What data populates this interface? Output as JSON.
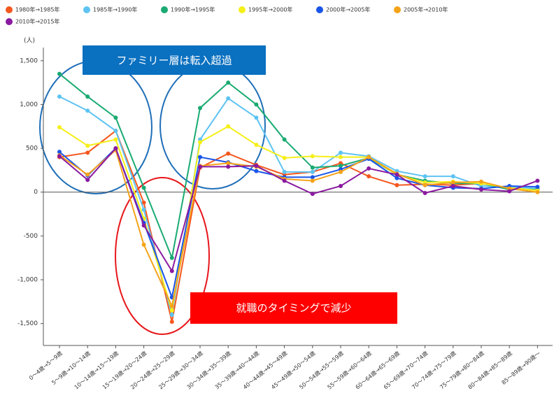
{
  "chart_data": {
    "type": "line",
    "y_label": "(人)",
    "annotations": [
      "ファミリー層は転入超過",
      "就職のタイミングで減少"
    ],
    "categories": [
      "0～4歳→5～9歳",
      "5～9歳→10～14歳",
      "10～14歳→15～19歳",
      "15～19歳→20～24歳",
      "20～24歳→25～29歳",
      "25～29歳→30～34歳",
      "30～34歳→35～39歳",
      "35～39歳→40～44歳",
      "40～44歳→45～49歳",
      "45～49歳→50～54歳",
      "50～54歳→55～59歳",
      "55～59歳→60～64歳",
      "60～64歳→65～69歳",
      "65～69歳→70～74歳",
      "70～74歳→75～79歳",
      "75～79歳→80～84歳",
      "80～84歳→85～89歳",
      "85～89歳→90歳～"
    ],
    "series": [
      {
        "name": "1980年→1985年",
        "color": "#f4581e",
        "values": [
          400,
          450,
          700,
          -120,
          -1480,
          280,
          440,
          310,
          200,
          230,
          330,
          180,
          80,
          90,
          80,
          100,
          30,
          30
        ]
      },
      {
        "name": "1985年→1990年",
        "color": "#5ec3f2",
        "values": [
          1090,
          930,
          700,
          -200,
          -1400,
          600,
          1070,
          850,
          230,
          230,
          450,
          410,
          240,
          180,
          180,
          70,
          60,
          40
        ]
      },
      {
        "name": "1990年→1995年",
        "color": "#1aaa72",
        "values": [
          1350,
          1090,
          850,
          50,
          -750,
          960,
          1250,
          1000,
          600,
          280,
          300,
          390,
          200,
          130,
          100,
          100,
          30,
          30
        ]
      },
      {
        "name": "1995年→2000年",
        "color": "#f5ef1a",
        "values": [
          740,
          530,
          600,
          -300,
          -1350,
          570,
          750,
          540,
          390,
          410,
          400,
          400,
          200,
          110,
          120,
          100,
          50,
          20
        ]
      },
      {
        "name": "2000年→2005年",
        "color": "#1a55e8",
        "values": [
          460,
          190,
          500,
          -350,
          -1200,
          400,
          340,
          240,
          170,
          170,
          260,
          380,
          160,
          80,
          50,
          40,
          70,
          60
        ]
      },
      {
        "name": "2005年→2010年",
        "color": "#f5a31a",
        "values": [
          420,
          200,
          480,
          -600,
          -1300,
          300,
          330,
          290,
          150,
          130,
          230,
          400,
          210,
          80,
          110,
          120,
          40,
          0
        ]
      },
      {
        "name": "2010年→2015年",
        "color": "#8a1aa0",
        "values": [
          410,
          140,
          500,
          -380,
          -900,
          290,
          290,
          300,
          130,
          -20,
          70,
          270,
          200,
          -10,
          70,
          30,
          10,
          130
        ]
      }
    ],
    "ylim": [
      -1750,
      1650
    ],
    "yticks": [
      {
        "value": 1500,
        "label": "1,500"
      },
      {
        "value": 1000,
        "label": "1,000"
      },
      500,
      0,
      -500,
      {
        "value": -1000,
        "label": "-1,000"
      },
      {
        "value": -1500,
        "label": "-1,500"
      }
    ],
    "grid": false
  }
}
